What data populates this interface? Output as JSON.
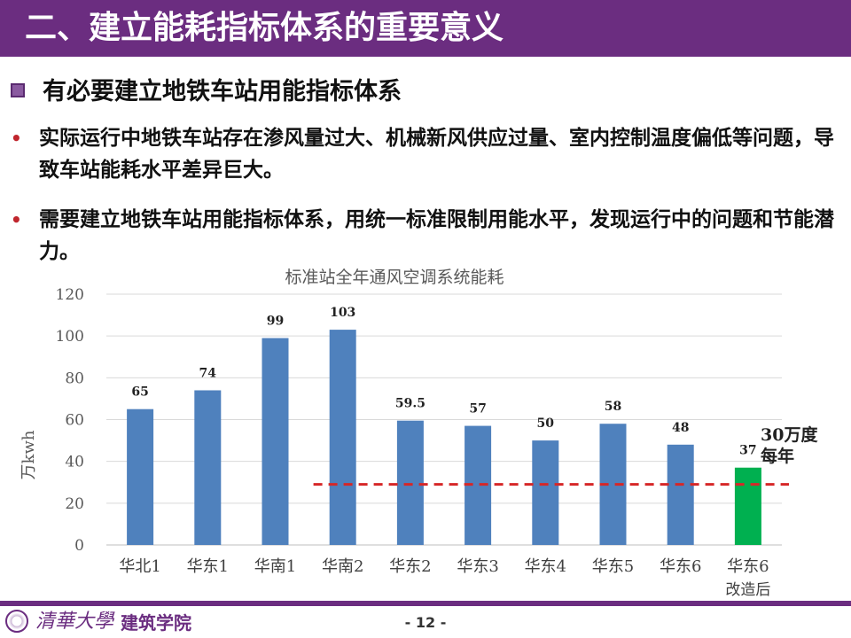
{
  "slide": {
    "header_title": "二、建立能耗指标体系的重要意义",
    "subtitle": "有必要建立地铁车站用能指标体系",
    "bullets": [
      "实际运行中地铁车站存在渗风量过大、机械新风供应过量、室内控制温度偏低等问题，导致车站能耗水平差异巨大。",
      "需要建立地铁车站用能指标体系，用统一标准限制用能水平，发现运行中的问题和节能潜力。"
    ],
    "annotation_line1": "30万度",
    "annotation_line2": "每年",
    "footer_university": "清華大學",
    "footer_department": "建筑学院",
    "page_number": "- 12 -",
    "colors": {
      "header": "#6b2d80",
      "bar": "#4f81bd",
      "bar_highlight": "#00b050",
      "reference_line": "#d62728",
      "bullet": "#c0262d"
    }
  },
  "chart_data": {
    "type": "bar",
    "title": "标准站全年通风空调系统能耗",
    "xlabel": "",
    "ylabel": "万kwh",
    "ylim": [
      0,
      120
    ],
    "yticks": [
      0,
      20,
      40,
      60,
      80,
      100,
      120
    ],
    "grid": true,
    "categories": [
      "华北1",
      "华东1",
      "华南1",
      "华南2",
      "华东2",
      "华东3",
      "华东4",
      "华东5",
      "华东6",
      "华东6"
    ],
    "category_sublabels": [
      "",
      "",
      "",
      "",
      "",
      "",
      "",
      "",
      "",
      "改造后"
    ],
    "values": [
      65,
      74,
      99,
      103,
      59.5,
      57,
      50,
      58,
      48,
      37
    ],
    "value_labels": [
      "65",
      "74",
      "99",
      "103",
      "59.5",
      "57",
      "50",
      "58",
      "48",
      "37"
    ],
    "highlight_index": 9,
    "reference_line": {
      "y": 29,
      "style": "dashed",
      "x_start_category": 3
    }
  }
}
